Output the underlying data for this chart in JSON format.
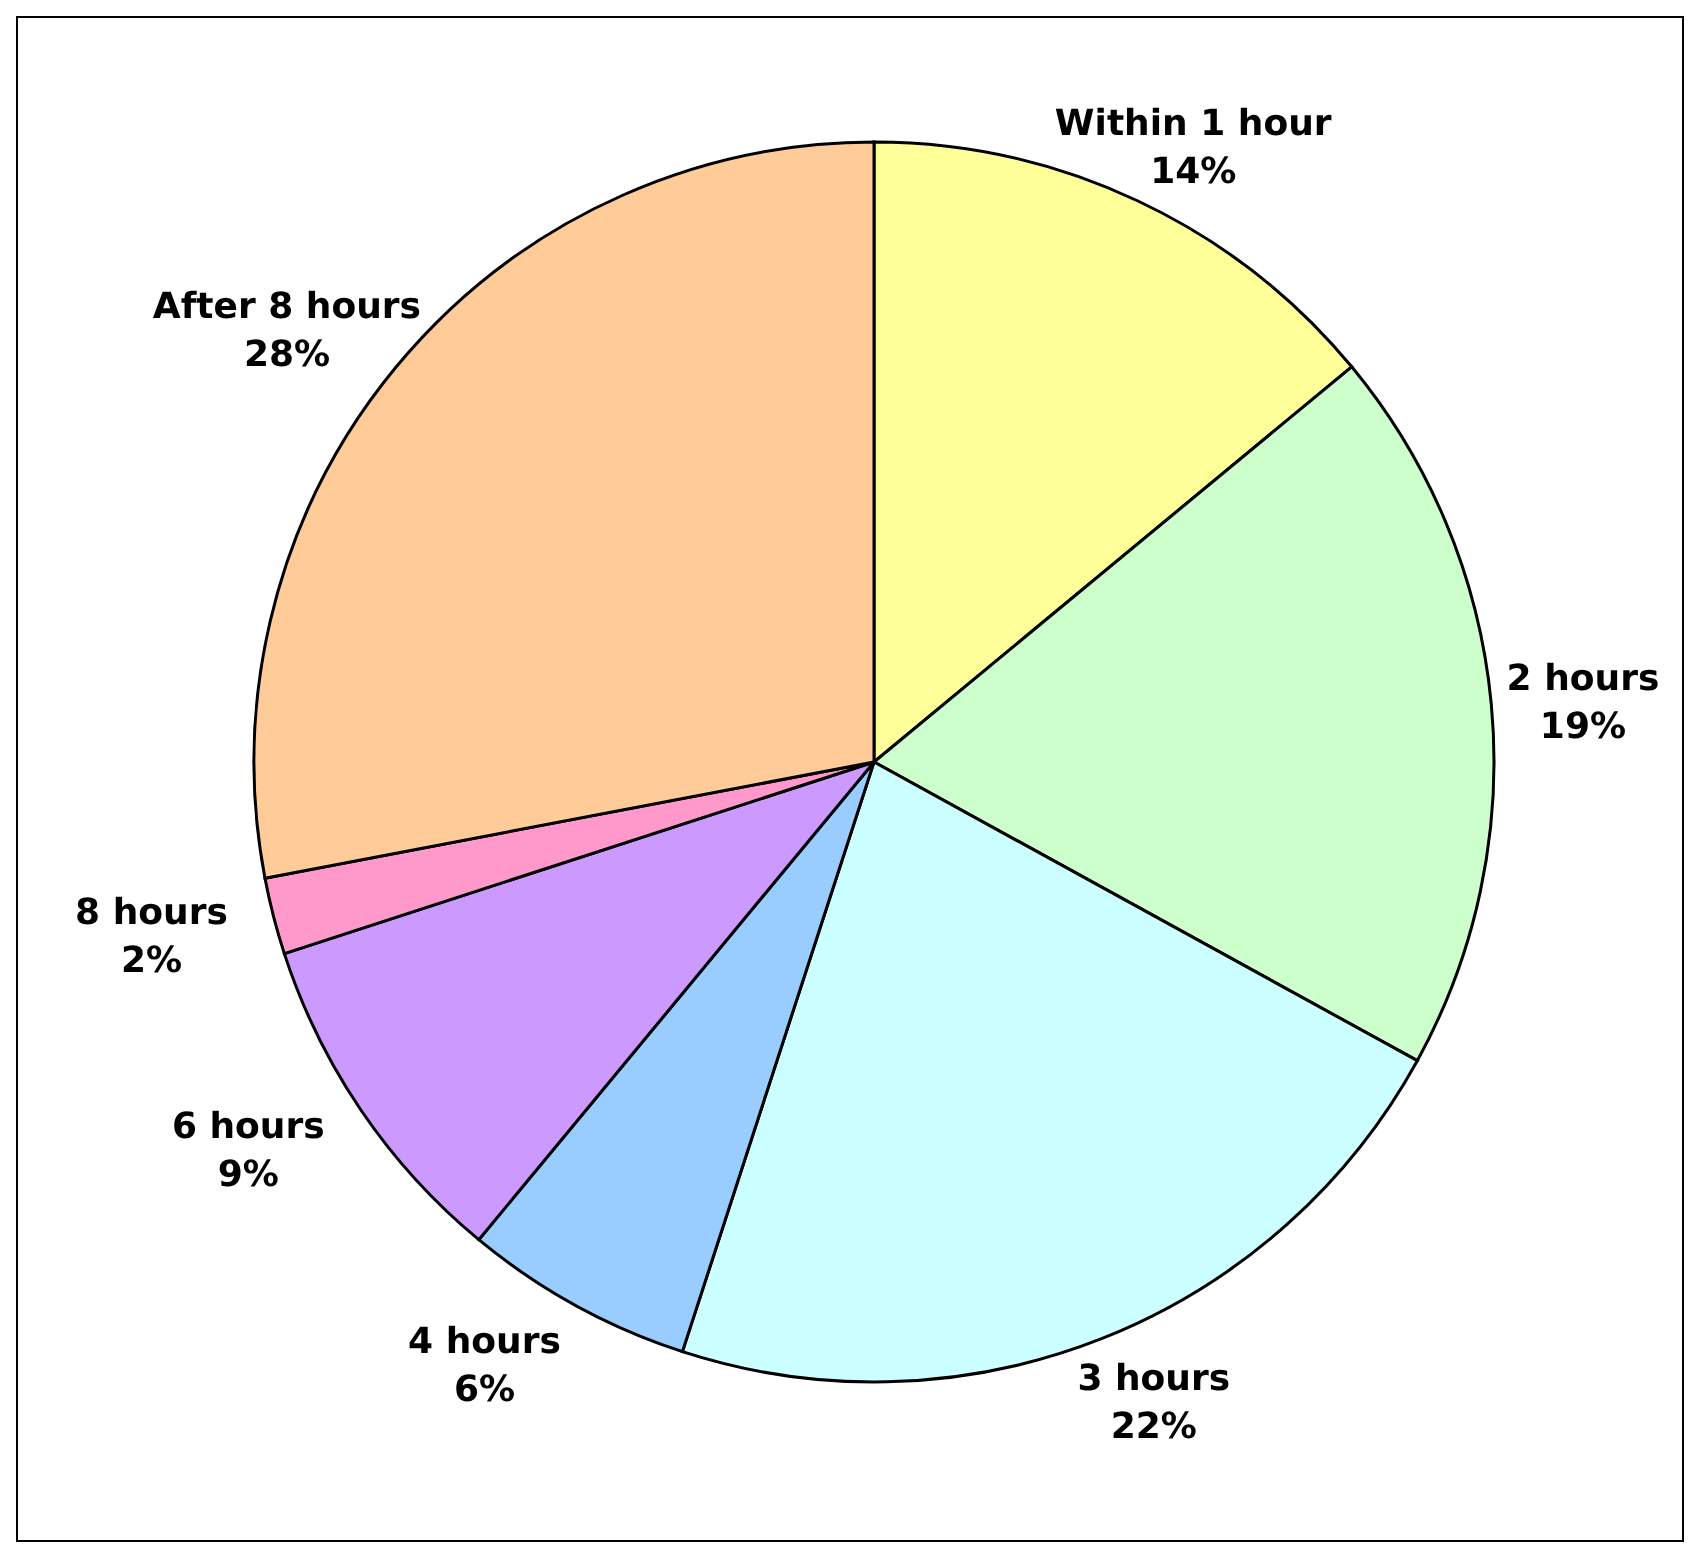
{
  "chart_data": {
    "type": "pie",
    "categories": [
      "Within 1 hour",
      "2 hours",
      "3 hours",
      "4 hours",
      "6 hours",
      "8 hours",
      "After 8 hours"
    ],
    "values": [
      14,
      19,
      22,
      6,
      9,
      2,
      28
    ],
    "value_labels": [
      "14%",
      "19%",
      "22%",
      "6%",
      "9%",
      "2%",
      "28%"
    ],
    "colors": [
      "#ffff99",
      "#ccffcc",
      "#ccffff",
      "#99ccff",
      "#cc99ff",
      "#ff99cc",
      "#ffcc99"
    ]
  }
}
